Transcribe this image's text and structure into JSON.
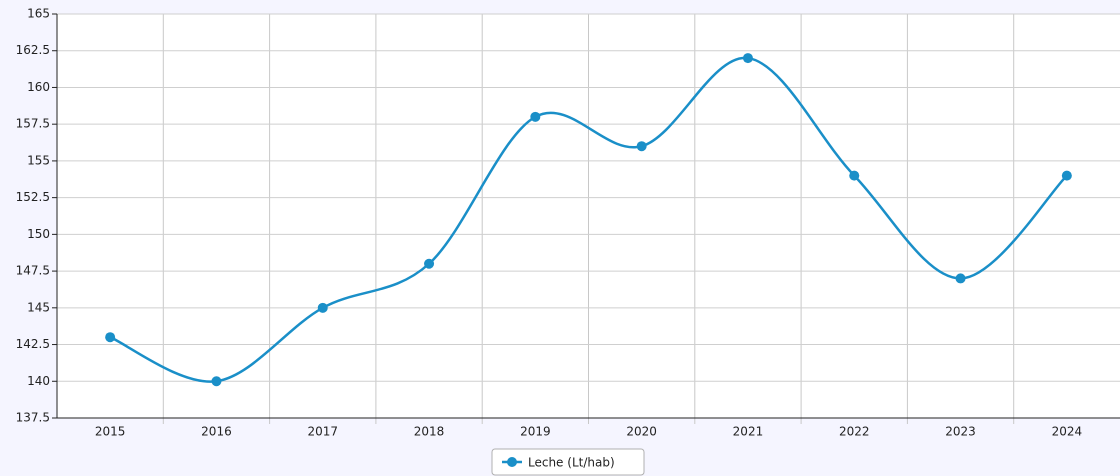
{
  "chart_data": {
    "type": "line",
    "categories": [
      "2015",
      "2016",
      "2017",
      "2018",
      "2019",
      "2020",
      "2021",
      "2022",
      "2023",
      "2024"
    ],
    "series": [
      {
        "name": "Leche (Lt/hab)",
        "color": "#1a8fc8",
        "values": [
          143,
          140,
          145,
          148,
          158,
          156,
          162,
          154,
          147,
          154
        ]
      }
    ],
    "ylim": [
      137.5,
      165
    ],
    "yticks": [
      137.5,
      140,
      142.5,
      145,
      147.5,
      150,
      152.5,
      155,
      157.5,
      160,
      162.5,
      165
    ],
    "grid": true,
    "smooth": true,
    "legend": "bottom"
  }
}
